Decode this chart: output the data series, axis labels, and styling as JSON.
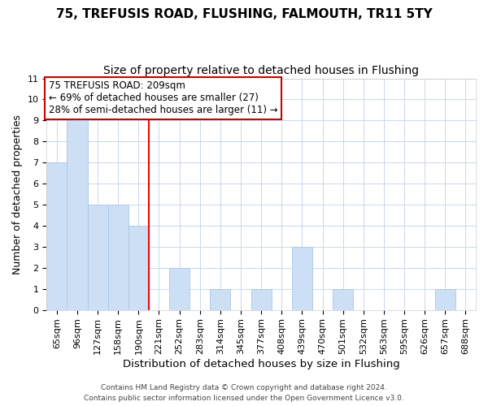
{
  "title": "75, TREFUSIS ROAD, FLUSHING, FALMOUTH, TR11 5TY",
  "subtitle": "Size of property relative to detached houses in Flushing",
  "xlabel": "Distribution of detached houses by size in Flushing",
  "ylabel": "Number of detached properties",
  "categories": [
    "65sqm",
    "96sqm",
    "127sqm",
    "158sqm",
    "190sqm",
    "221sqm",
    "252sqm",
    "283sqm",
    "314sqm",
    "345sqm",
    "377sqm",
    "408sqm",
    "439sqm",
    "470sqm",
    "501sqm",
    "532sqm",
    "563sqm",
    "595sqm",
    "626sqm",
    "657sqm",
    "688sqm"
  ],
  "values": [
    7,
    9,
    5,
    5,
    4,
    0,
    2,
    0,
    1,
    0,
    1,
    0,
    3,
    0,
    1,
    0,
    0,
    0,
    0,
    1,
    0
  ],
  "bar_color": "#ccdff5",
  "bar_edge_color": "#a8c8e8",
  "red_line_x": 5,
  "ylim": [
    0,
    11
  ],
  "yticks": [
    0,
    1,
    2,
    3,
    4,
    5,
    6,
    7,
    8,
    9,
    10,
    11
  ],
  "annotation_line1": "75 TREFUSIS ROAD: 209sqm",
  "annotation_line2": "← 69% of detached houses are smaller (27)",
  "annotation_line3": "28% of semi-detached houses are larger (11) →",
  "annotation_box_color": "#ffffff",
  "annotation_box_edgecolor": "#cc0000",
  "footer_line1": "Contains HM Land Registry data © Crown copyright and database right 2024.",
  "footer_line2": "Contains public sector information licensed under the Open Government Licence v3.0.",
  "grid_color": "#c8d8ee",
  "title_fontsize": 11,
  "subtitle_fontsize": 10,
  "xlabel_fontsize": 9.5,
  "ylabel_fontsize": 9,
  "tick_fontsize": 8,
  "annotation_fontsize": 8.5
}
